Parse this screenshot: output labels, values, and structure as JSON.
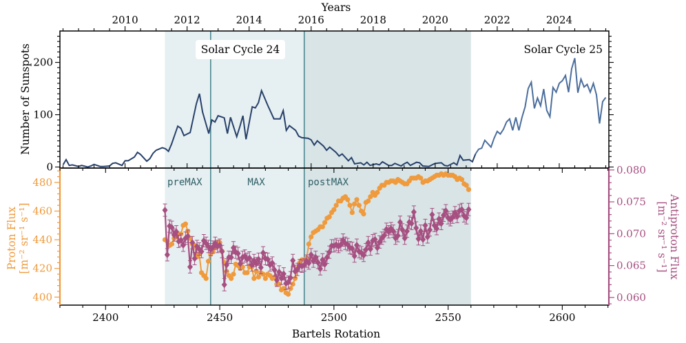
{
  "colors": {
    "sunspots_prev": "#27406a",
    "sunspots_next": "#4a6d9c",
    "proton": "#ef9a3c",
    "antiproton": "#a64f80",
    "shade_cycle": "#e6eff1",
    "shade_post": "#d8e4e6",
    "divider": "#4d8891",
    "period_label": "#2f5f66",
    "axis": "#000000"
  },
  "chart_data": [
    {
      "type": "line",
      "panel": "top",
      "title": "",
      "top_axis": {
        "label": "Years",
        "ticks": [
          2010,
          2012,
          2014,
          2016,
          2018,
          2020,
          2022,
          2024
        ],
        "xlim": [
          2007.9,
          2025.6
        ]
      },
      "ylabel": "Number of Sunspots",
      "yticks": [
        0,
        100,
        200
      ],
      "ylim": [
        -2,
        260
      ],
      "annotations": [
        {
          "text": "Solar Cycle 24",
          "x": 2014.0,
          "position": "top",
          "boxed": true
        },
        {
          "text": "Solar Cycle 25",
          "x": 2024.0,
          "position": "top-right",
          "boxed": false
        }
      ],
      "series": [
        {
          "name": "",
          "x_unit": "year",
          "x": [
            2008.0,
            2008.1,
            2008.2,
            2008.3,
            2008.5,
            2008.6,
            2008.8,
            2008.9,
            2009.0,
            2009.2,
            2009.3,
            2009.5,
            2009.6,
            2009.7,
            2009.9,
            2010.0,
            2010.1,
            2010.3,
            2010.4,
            2010.5,
            2010.7,
            2010.8,
            2010.9,
            2011.0,
            2011.2,
            2011.3,
            2011.4,
            2011.5,
            2011.7,
            2011.8,
            2011.9,
            2012.0,
            2012.1,
            2012.3,
            2012.4,
            2012.5,
            2012.7,
            2012.8,
            2012.9,
            2013.0,
            2013.2,
            2013.3,
            2013.4,
            2013.6,
            2013.7,
            2013.8,
            2013.9,
            2014.1,
            2014.2,
            2014.3,
            2014.4,
            2014.6,
            2014.7,
            2014.8,
            2015.0,
            2015.1,
            2015.2,
            2015.3,
            2015.5,
            2015.6,
            2015.7,
            2015.9,
            2016.0,
            2016.1,
            2016.2,
            2016.4,
            2016.5,
            2016.6,
            2016.8,
            2016.9,
            2017.0,
            2017.2,
            2017.3,
            2017.4,
            2017.6,
            2017.7,
            2017.8,
            2017.9,
            2018.1,
            2018.2,
            2018.3,
            2018.5,
            2018.6,
            2018.7,
            2018.9,
            2019.0,
            2019.1,
            2019.2,
            2019.4,
            2019.5,
            2019.6,
            2019.8,
            2019.9,
            2020.0,
            2020.2,
            2020.3,
            2020.4,
            2020.6,
            2020.7,
            2020.8,
            2020.9,
            2021.1,
            2021.2,
            2021.3
          ],
          "y": [
            4,
            14,
            3,
            4,
            1,
            3,
            0,
            2,
            5,
            1,
            1,
            2,
            7,
            8,
            3,
            12,
            12,
            19,
            28,
            24,
            11,
            16,
            26,
            32,
            37,
            35,
            30,
            44,
            78,
            74,
            60,
            63,
            66,
            121,
            140,
            105,
            64,
            90,
            86,
            98,
            94,
            64,
            95,
            58,
            77,
            98,
            53,
            115,
            113,
            123,
            146,
            118,
            105,
            92,
            92,
            108,
            70,
            79,
            70,
            59,
            56,
            55,
            52,
            42,
            50,
            40,
            32,
            38,
            28,
            21,
            25,
            12,
            18,
            6,
            8,
            4,
            9,
            3,
            6,
            4,
            10,
            3,
            3,
            7,
            2,
            6,
            9,
            3,
            9,
            8,
            2,
            1,
            4,
            7,
            8,
            3,
            2,
            8,
            4,
            22,
            13,
            14,
            10,
            25
          ]
        },
        {
          "name": "",
          "x_unit": "year",
          "x": [
            2021.3,
            2021.4,
            2021.5,
            2021.6,
            2021.8,
            2021.9,
            2022.0,
            2022.1,
            2022.2,
            2022.3,
            2022.4,
            2022.5,
            2022.6,
            2022.7,
            2022.8,
            2022.9,
            2023.0,
            2023.1,
            2023.2,
            2023.3,
            2023.4,
            2023.5,
            2023.6,
            2023.7,
            2023.8,
            2023.9,
            2024.0,
            2024.1,
            2024.2,
            2024.3,
            2024.4,
            2024.5,
            2024.6,
            2024.7,
            2024.8,
            2024.9,
            2025.0,
            2025.1,
            2025.2,
            2025.3,
            2025.4,
            2025.5
          ],
          "y": [
            25,
            34,
            36,
            51,
            38,
            55,
            68,
            63,
            72,
            86,
            92,
            70,
            95,
            70,
            95,
            115,
            150,
            162,
            112,
            132,
            117,
            149,
            108,
            96,
            152,
            143,
            160,
            165,
            175,
            143,
            188,
            208,
            142,
            168,
            153,
            158,
            143,
            160,
            138,
            83,
            125,
            133
          ]
        }
      ]
    },
    {
      "type": "line",
      "panel": "bottom",
      "title": "",
      "xlabel": "Bartels Rotation",
      "xticks": [
        2400,
        2450,
        2500,
        2550,
        2600
      ],
      "xlim": [
        2380.0,
        2620.4
      ],
      "ylabel_left": "Proton Flux [m⁻² sr⁻¹ s⁻¹]",
      "ylabel_left_lines": [
        "Proton Flux",
        "[m⁻² sr⁻¹ s⁻¹]"
      ],
      "ylabel_right": "Antiproton Flux [m⁻² sr⁻¹ s⁻¹]",
      "ylabel_right_lines": [
        "Antiproton Flux",
        "[m⁻² sr⁻¹ s⁻¹]"
      ],
      "yticks_left": [
        400,
        420,
        440,
        460,
        480
      ],
      "ylim_left": [
        394.4,
        490.0
      ],
      "yticks_right": [
        "0.060",
        "0.065",
        "0.070",
        "0.075",
        "0.080"
      ],
      "ylim_right": [
        0.0588,
        0.0803
      ],
      "shaded_regions": [
        {
          "label": "preMAX",
          "x_start": 2426,
          "x_end": 2446
        },
        {
          "label": "MAX",
          "x_start": 2446,
          "x_end": 2487
        },
        {
          "label": "postMAX",
          "x_start": 2487,
          "x_end": 2560
        }
      ],
      "series": [
        {
          "name": "",
          "axis": "left",
          "x": [
            2426.0,
            2427.0,
            2428.0,
            2429.0,
            2430.0,
            2431.0,
            2432.0,
            2433.0,
            2434.0,
            2435.0,
            2436.0,
            2437.0,
            2438.0,
            2439.0,
            2440.0,
            2441.0,
            2442.0,
            2443.0,
            2444.0,
            2445.0,
            2446.0,
            2447.0,
            2448.0,
            2449.0,
            2450.0,
            2451.0,
            2452.0,
            2453.0,
            2454.0,
            2455.0,
            2456.0,
            2457.0,
            2458.0,
            2459.0,
            2460.0,
            2461.0,
            2462.0,
            2463.0,
            2464.0,
            2465.0,
            2466.0,
            2467.0,
            2468.0,
            2469.0,
            2470.0,
            2471.0,
            2472.0,
            2473.0,
            2474.0,
            2475.0,
            2476.0,
            2477.0,
            2478.0,
            2479.0,
            2480.0,
            2481.0,
            2482.0,
            2483.0,
            2484.0,
            2485.0,
            2486.0,
            2487.0,
            2488.0,
            2489.0,
            2490.0,
            2491.0,
            2492.0,
            2493.0,
            2494.0,
            2495.0,
            2496.0,
            2497.0,
            2498.0,
            2499.0,
            2500.0,
            2501.0,
            2502.0,
            2503.0,
            2504.0,
            2505.0,
            2506.0,
            2507.0,
            2508.0,
            2509.0,
            2510.0,
            2511.0,
            2512.0,
            2513.0,
            2514.0,
            2515.0,
            2516.0,
            2517.0,
            2518.0,
            2519.0,
            2520.0,
            2521.0,
            2522.0,
            2523.0,
            2524.0,
            2525.0,
            2526.0,
            2527.0,
            2528.0,
            2529.0,
            2530.0,
            2531.0,
            2532.0,
            2533.0,
            2534.0,
            2535.0,
            2536.0,
            2537.0,
            2538.0,
            2539.0,
            2540.0,
            2541.0,
            2542.0,
            2543.0,
            2544.0,
            2545.0,
            2546.0,
            2547.0,
            2548.0,
            2549.0,
            2550.0,
            2551.0,
            2552.0,
            2553.0,
            2554.0,
            2555.0,
            2556.0,
            2557.0,
            2558.0,
            2559.0
          ],
          "y": [
            440,
            439,
            436,
            437,
            441,
            442,
            444,
            444,
            450,
            451,
            446,
            441,
            437,
            436,
            428,
            430,
            417,
            415,
            413,
            425,
            430,
            432,
            435,
            438,
            438,
            432,
            424,
            418,
            415,
            413,
            416,
            423,
            422,
            420,
            421,
            417,
            417,
            421,
            421,
            413,
            418,
            414,
            417,
            416,
            413,
            416,
            415,
            413,
            414,
            409,
            409,
            405,
            406,
            403,
            402,
            406,
            409,
            413,
            420,
            424,
            426,
            426,
            427,
            437,
            442,
            445,
            446,
            447,
            449,
            449,
            452,
            455,
            456,
            459,
            461,
            464,
            467,
            467,
            469,
            470,
            468,
            464,
            459,
            465,
            468,
            464,
            460,
            458,
            466,
            467,
            470,
            473,
            471,
            473,
            476,
            478,
            478,
            480,
            480,
            481,
            481,
            480,
            482,
            481,
            480,
            479,
            479,
            481,
            483,
            483,
            483,
            484,
            483,
            480,
            481,
            481,
            482,
            483,
            484,
            485,
            485,
            486,
            485,
            486,
            485,
            485,
            485,
            484,
            482,
            483,
            482,
            479,
            478,
            475
          ]
        },
        {
          "name": "",
          "axis": "right",
          "x": [
            2426.0,
            2427.0,
            2428.0,
            2429.0,
            2430.0,
            2431.0,
            2432.0,
            2433.0,
            2434.0,
            2435.0,
            2436.0,
            2437.0,
            2438.0,
            2439.0,
            2440.0,
            2441.0,
            2442.0,
            2443.0,
            2444.0,
            2445.0,
            2446.0,
            2447.0,
            2448.0,
            2449.0,
            2450.0,
            2451.0,
            2452.0,
            2453.0,
            2454.0,
            2455.0,
            2456.0,
            2457.0,
            2458.0,
            2459.0,
            2460.0,
            2461.0,
            2462.0,
            2463.0,
            2464.0,
            2465.0,
            2466.0,
            2467.0,
            2468.0,
            2469.0,
            2470.0,
            2471.0,
            2472.0,
            2473.0,
            2474.0,
            2475.0,
            2476.0,
            2477.0,
            2478.0,
            2479.0,
            2480.0,
            2481.0,
            2482.0,
            2483.0,
            2484.0,
            2485.0,
            2486.0,
            2487.0,
            2488.0,
            2489.0,
            2490.0,
            2491.0,
            2492.0,
            2493.0,
            2494.0,
            2495.0,
            2496.0,
            2497.0,
            2498.0,
            2499.0,
            2500.0,
            2501.0,
            2502.0,
            2503.0,
            2504.0,
            2505.0,
            2506.0,
            2507.0,
            2508.0,
            2509.0,
            2510.0,
            2511.0,
            2512.0,
            2513.0,
            2514.0,
            2515.0,
            2516.0,
            2517.0,
            2518.0,
            2519.0,
            2520.0,
            2521.0,
            2522.0,
            2523.0,
            2524.0,
            2525.0,
            2526.0,
            2527.0,
            2528.0,
            2529.0,
            2530.0,
            2531.0,
            2532.0,
            2533.0,
            2534.0,
            2535.0,
            2536.0,
            2537.0,
            2538.0,
            2539.0,
            2540.0,
            2541.0,
            2542.0,
            2543.0,
            2544.0,
            2545.0,
            2546.0,
            2547.0,
            2548.0,
            2549.0,
            2550.0,
            2551.0,
            2552.0,
            2553.0,
            2554.0,
            2555.0,
            2556.0,
            2557.0,
            2558.0,
            2559.0
          ],
          "y": [
            0.0737,
            0.0667,
            0.0712,
            0.071,
            0.0698,
            0.0703,
            0.0688,
            0.069,
            0.0682,
            0.0693,
            0.0696,
            0.0648,
            0.0686,
            0.0661,
            0.068,
            0.0676,
            0.0672,
            0.0689,
            0.0685,
            0.068,
            0.0675,
            0.0679,
            0.0685,
            0.068,
            0.0682,
            0.0672,
            0.062,
            0.0651,
            0.0663,
            0.0663,
            0.0678,
            0.0671,
            0.0669,
            0.0653,
            0.0663,
            0.0665,
            0.066,
            0.0662,
            0.0651,
            0.0658,
            0.0653,
            0.066,
            0.0647,
            0.067,
            0.0661,
            0.066,
            0.0651,
            0.0654,
            0.0643,
            0.0627,
            0.064,
            0.063,
            0.0637,
            0.0622,
            0.0624,
            0.0631,
            0.0658,
            0.0641,
            0.0644,
            0.065,
            0.0649,
            0.0651,
            0.0657,
            0.0654,
            0.0667,
            0.0657,
            0.0663,
            0.0655,
            0.0645,
            0.0659,
            0.0652,
            0.0663,
            0.0671,
            0.0681,
            0.0681,
            0.0683,
            0.068,
            0.0683,
            0.069,
            0.0685,
            0.0683,
            0.0678,
            0.0677,
            0.0665,
            0.0682,
            0.0672,
            0.067,
            0.0666,
            0.0675,
            0.0686,
            0.0676,
            0.0689,
            0.0691,
            0.0678,
            0.0687,
            0.0693,
            0.0697,
            0.0707,
            0.0703,
            0.0708,
            0.0704,
            0.0693,
            0.0697,
            0.0718,
            0.0706,
            0.0693,
            0.0704,
            0.0718,
            0.0716,
            0.0734,
            0.0709,
            0.0692,
            0.0704,
            0.0691,
            0.0713,
            0.0695,
            0.0706,
            0.073,
            0.0713,
            0.0708,
            0.0723,
            0.0716,
            0.0729,
            0.0736,
            0.0725,
            0.0722,
            0.0726,
            0.0733,
            0.0727,
            0.0736,
            0.0738,
            0.0728,
            0.0725,
            0.0738
          ]
        }
      ]
    }
  ]
}
